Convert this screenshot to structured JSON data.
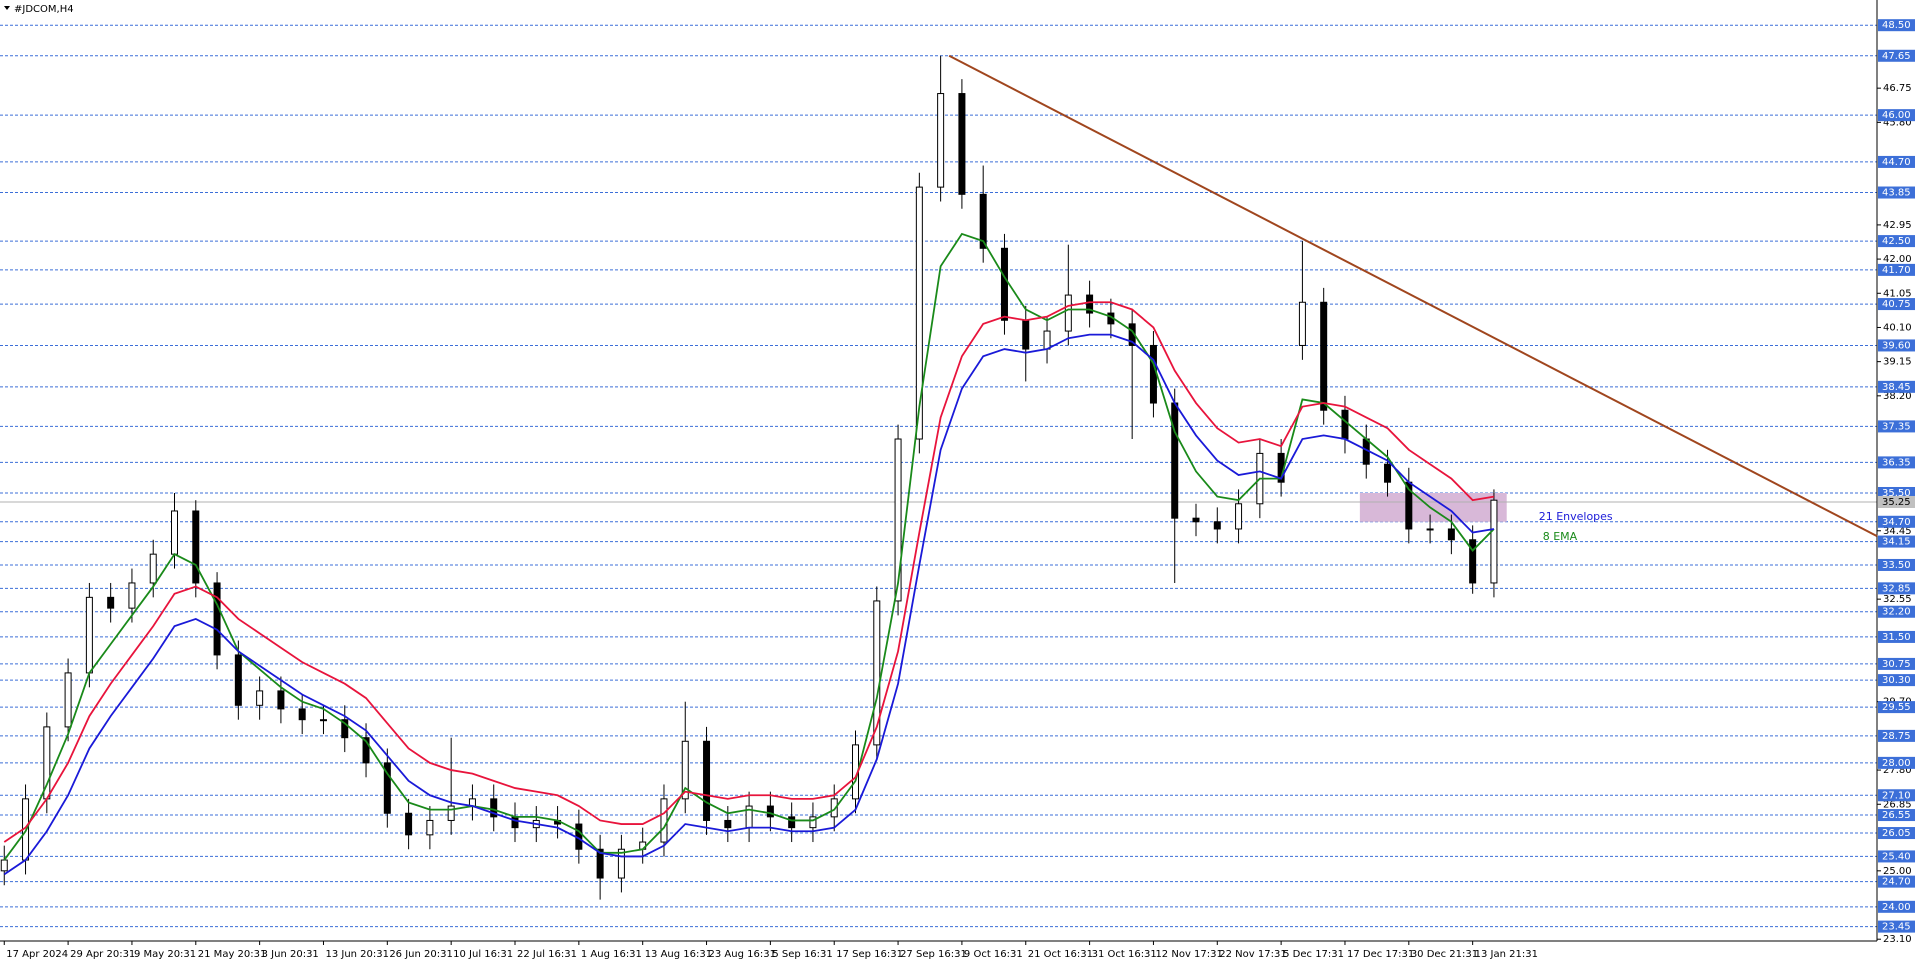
{
  "chart_data": {
    "type": "candlestick",
    "title": "#JDCOM,H4",
    "categories": [
      "17 Apr 2024",
      null,
      null,
      "29 Apr 20:31",
      null,
      null,
      "9 May 20:31",
      null,
      null,
      "21 May 20:31",
      null,
      null,
      "3 Jun 20:31",
      null,
      null,
      "13 Jun 20:31",
      null,
      null,
      "26 Jun 20:31",
      null,
      null,
      "10 Jul 16:31",
      null,
      null,
      "22 Jul 16:31",
      null,
      null,
      "1 Aug 16:31",
      null,
      null,
      "13 Aug 16:31",
      null,
      null,
      "23 Aug 16:31",
      null,
      null,
      "5 Sep 16:31",
      null,
      null,
      "17 Sep 16:31",
      null,
      null,
      "27 Sep 16:31",
      null,
      null,
      "9 Oct 16:31",
      null,
      null,
      "21 Oct 16:31",
      null,
      null,
      "31 Oct 16:31",
      null,
      null,
      "12 Nov 17:31",
      null,
      null,
      "22 Nov 17:31",
      null,
      null,
      "5 Dec 17:31",
      null,
      null,
      "17 Dec 17:31",
      null,
      null,
      "30 Dec 21:31",
      null,
      null,
      "13 Jan 21:31",
      null
    ],
    "open": [
      25.0,
      25.3,
      27.0,
      29.0,
      30.5,
      32.6,
      32.3,
      33.0,
      33.8,
      35.0,
      33.0,
      31.0,
      29.6,
      30.0,
      29.5,
      29.2,
      29.2,
      28.7,
      28.0,
      26.6,
      26.0,
      26.4,
      26.8,
      27.0,
      26.5,
      26.2,
      26.4,
      26.3,
      25.6,
      24.8,
      25.6,
      25.8,
      27.0,
      28.6,
      26.4,
      26.2,
      26.8,
      26.5,
      26.2,
      26.5,
      27.0,
      28.5,
      32.5,
      37.0,
      44.0,
      46.6,
      43.8,
      42.3,
      40.3,
      39.5,
      40.0,
      41.0,
      40.5,
      40.2,
      39.6,
      38.0,
      34.8,
      34.7,
      34.5,
      35.2,
      36.6,
      39.6,
      40.8,
      37.8,
      37.0,
      36.3,
      35.8,
      34.5,
      34.5,
      34.2,
      33.0
    ],
    "high": [
      25.7,
      27.4,
      29.4,
      30.9,
      33.0,
      33.0,
      33.4,
      34.2,
      35.5,
      35.3,
      33.3,
      31.4,
      30.4,
      30.4,
      29.9,
      29.6,
      29.6,
      29.1,
      28.4,
      27.0,
      26.8,
      28.7,
      27.4,
      27.4,
      26.9,
      26.8,
      26.8,
      26.7,
      26.0,
      26.0,
      26.2,
      27.4,
      29.7,
      29.0,
      26.8,
      27.2,
      27.2,
      26.9,
      26.9,
      27.4,
      28.9,
      32.9,
      37.4,
      44.4,
      47.65,
      47.0,
      44.6,
      42.7,
      40.7,
      40.4,
      42.4,
      41.4,
      40.9,
      40.6,
      40.0,
      38.4,
      35.2,
      35.1,
      35.6,
      37.0,
      37.0,
      42.5,
      41.2,
      38.2,
      37.4,
      36.7,
      36.2,
      34.9,
      34.9,
      34.6,
      35.6
    ],
    "low": [
      24.6,
      24.9,
      26.6,
      28.6,
      30.1,
      31.9,
      31.9,
      32.6,
      33.4,
      32.6,
      30.6,
      29.2,
      29.2,
      29.1,
      28.8,
      28.8,
      28.3,
      27.6,
      26.2,
      25.6,
      25.6,
      26.0,
      26.4,
      26.1,
      25.8,
      25.8,
      25.9,
      25.2,
      24.2,
      24.4,
      25.2,
      25.4,
      26.6,
      26.0,
      25.8,
      25.8,
      26.1,
      25.8,
      25.8,
      26.1,
      26.6,
      28.1,
      32.1,
      36.6,
      43.6,
      43.4,
      41.9,
      39.9,
      38.6,
      39.1,
      39.6,
      40.1,
      39.8,
      37.0,
      37.6,
      33.0,
      34.3,
      34.1,
      34.1,
      34.8,
      35.4,
      39.2,
      37.4,
      36.6,
      35.9,
      35.4,
      34.1,
      34.1,
      33.8,
      32.7,
      32.6
    ],
    "close": [
      25.3,
      27.0,
      29.0,
      30.5,
      32.6,
      32.3,
      33.0,
      33.8,
      35.0,
      33.0,
      31.0,
      29.6,
      30.0,
      29.5,
      29.2,
      29.2,
      28.7,
      28.0,
      26.6,
      26.0,
      26.4,
      26.8,
      27.0,
      26.5,
      26.2,
      26.4,
      26.3,
      25.6,
      24.8,
      25.6,
      25.8,
      27.0,
      28.6,
      26.4,
      26.2,
      26.8,
      26.5,
      26.2,
      26.5,
      27.0,
      28.5,
      32.5,
      37.0,
      44.0,
      46.6,
      43.8,
      42.3,
      40.3,
      39.5,
      40.0,
      41.0,
      40.5,
      40.2,
      39.6,
      38.0,
      34.8,
      34.7,
      34.5,
      35.2,
      36.6,
      35.8,
      40.8,
      37.8,
      37.0,
      36.3,
      35.8,
      34.5,
      34.5,
      34.2,
      33.0,
      35.3
    ],
    "series": [
      {
        "name": "8 EMA",
        "color": "#1a8a1a",
        "values": [
          25.3,
          26.1,
          27.4,
          28.8,
          30.5,
          31.3,
          32.1,
          32.9,
          33.8,
          33.5,
          32.4,
          31.1,
          30.6,
          30.1,
          29.7,
          29.5,
          29.1,
          28.6,
          27.7,
          26.9,
          26.7,
          26.7,
          26.8,
          26.7,
          26.5,
          26.5,
          26.4,
          26.1,
          25.5,
          25.5,
          25.6,
          26.2,
          27.3,
          26.9,
          26.6,
          26.7,
          26.6,
          26.4,
          26.4,
          26.7,
          27.5,
          29.8,
          33.0,
          37.9,
          41.8,
          42.7,
          42.5,
          41.5,
          40.6,
          40.3,
          40.6,
          40.6,
          40.4,
          40.0,
          39.1,
          37.2,
          36.1,
          35.4,
          35.3,
          35.9,
          35.9,
          38.1,
          38.0,
          37.5,
          37.0,
          36.5,
          35.6,
          35.1,
          34.7,
          33.9,
          34.5
        ]
      },
      {
        "name": "21 Envelopes",
        "color": "#1a1ad8",
        "values": [
          24.9,
          25.3,
          26.1,
          27.1,
          28.4,
          29.3,
          30.1,
          30.9,
          31.8,
          32.0,
          31.7,
          31.1,
          30.7,
          30.3,
          29.9,
          29.6,
          29.3,
          28.9,
          28.2,
          27.5,
          27.1,
          26.9,
          26.8,
          26.6,
          26.4,
          26.3,
          26.2,
          25.9,
          25.5,
          25.4,
          25.4,
          25.7,
          26.3,
          26.2,
          26.1,
          26.2,
          26.2,
          26.1,
          26.1,
          26.2,
          26.7,
          28.1,
          30.2,
          33.5,
          36.7,
          38.4,
          39.3,
          39.5,
          39.4,
          39.5,
          39.8,
          39.9,
          39.9,
          39.7,
          39.2,
          38.0,
          37.1,
          36.4,
          36.0,
          36.1,
          35.9,
          37.0,
          37.1,
          37.0,
          36.7,
          36.4,
          35.8,
          35.4,
          35.0,
          34.4,
          34.5
        ],
        "upper_color": "#e8143c",
        "upper": [
          25.8,
          26.2,
          27.0,
          28.0,
          29.3,
          30.2,
          31.0,
          31.8,
          32.7,
          32.9,
          32.6,
          32.0,
          31.6,
          31.2,
          30.8,
          30.5,
          30.2,
          29.8,
          29.1,
          28.4,
          28.0,
          27.8,
          27.7,
          27.5,
          27.3,
          27.2,
          27.1,
          26.8,
          26.4,
          26.3,
          26.3,
          26.6,
          27.2,
          27.1,
          27.0,
          27.1,
          27.1,
          27.0,
          27.0,
          27.1,
          27.6,
          29.0,
          31.1,
          34.4,
          37.6,
          39.3,
          40.2,
          40.4,
          40.3,
          40.4,
          40.7,
          40.8,
          40.8,
          40.6,
          40.1,
          38.9,
          38.0,
          37.3,
          36.9,
          37.0,
          36.8,
          37.9,
          38.0,
          37.9,
          37.6,
          37.3,
          36.7,
          36.3,
          35.9,
          35.3,
          35.4
        ]
      }
    ],
    "xlim": [
      -0.2,
      88
    ],
    "ylim": [
      23.05,
      49.2
    ],
    "yticks": [
      46.75,
      {
        "value": 45.8,
        "label": "45.80"
      },
      42.95,
      {
        "value": 42.0,
        "label": "42.00"
      },
      41.05,
      {
        "value": 40.1,
        "label": "40.10"
      },
      39.15,
      {
        "value": 38.2,
        "label": "38.20"
      },
      34.45,
      32.55,
      {
        "value": 29.7,
        "label": "29.70"
      },
      {
        "value": 27.8,
        "label": "27.80"
      },
      26.85,
      {
        "value": 25.0,
        "label": "25.00"
      },
      {
        "value": 23.1,
        "label": "23.10"
      }
    ],
    "levels": [
      {
        "value": 48.5,
        "label": "48.50"
      },
      47.65,
      {
        "value": 46.0,
        "label": "46.00"
      },
      {
        "value": 44.7,
        "label": "44.70"
      },
      43.85,
      {
        "value": 42.5,
        "label": "42.50"
      },
      {
        "value": 41.7,
        "label": "41.70"
      },
      40.75,
      {
        "value": 39.6,
        "label": "39.60"
      },
      38.45,
      37.35,
      36.35,
      {
        "value": 35.5,
        "label": "35.50"
      },
      {
        "value": 34.7,
        "label": "34.70"
      },
      34.15,
      {
        "value": 33.5,
        "label": "33.50"
      },
      32.85,
      {
        "value": 32.2,
        "label": "32.20"
      },
      {
        "value": 31.5,
        "label": "31.50"
      },
      30.75,
      {
        "value": 30.3,
        "label": "30.30"
      },
      29.55,
      28.75,
      {
        "value": 28.0,
        "label": "28.00"
      },
      {
        "value": 27.1,
        "label": "27.10"
      },
      26.55,
      26.05,
      {
        "value": 25.4,
        "label": "25.40"
      },
      {
        "value": 24.7,
        "label": "24.70"
      },
      {
        "value": 24.0,
        "label": "24.00"
      },
      23.45
    ],
    "level_color": "#3c6fd8",
    "last_price": 35.25,
    "trendline": {
      "x": [
        44.4,
        88.0
      ],
      "y": [
        47.65,
        34.3
      ],
      "color": "#a0461e"
    },
    "zone": {
      "x": [
        63.7,
        70.6
      ],
      "y": [
        35.5,
        34.7
      ],
      "color": "#d8b8d8"
    }
  }
}
